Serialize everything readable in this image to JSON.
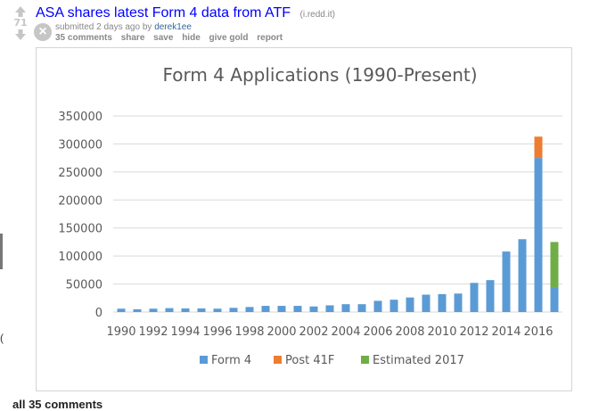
{
  "post": {
    "score": "71",
    "title": "ASA shares latest Form 4 data from ATF",
    "domain": "(i.redd.it)",
    "submitted_prefix": "submitted 2 days ago by",
    "author": "derek1ee",
    "comments_label": "35 comments",
    "share_label": "share",
    "save_label": "save",
    "hide_label": "hide",
    "give_gold_label": "give gold",
    "report_label": "report"
  },
  "footer": {
    "comments_header": "all 35 comments"
  },
  "colors": {
    "form4": "#5B9BD5",
    "post41f": "#ED7D31",
    "estimated": "#70AD47"
  },
  "chart_data": {
    "type": "bar",
    "title": "Form 4 Applications (1990-Present)",
    "x": [
      1990,
      1991,
      1992,
      1993,
      1994,
      1995,
      1996,
      1997,
      1998,
      1999,
      2000,
      2001,
      2002,
      2003,
      2004,
      2005,
      2006,
      2007,
      2008,
      2009,
      2010,
      2011,
      2012,
      2013,
      2014,
      2015,
      2016,
      2017
    ],
    "series": [
      {
        "name": "Form 4",
        "values": [
          6000,
          5000,
          6000,
          7000,
          6500,
          6500,
          6000,
          7500,
          9000,
          11000,
          11000,
          11000,
          10000,
          12000,
          14000,
          14000,
          20000,
          22000,
          26000,
          31000,
          32000,
          33000,
          52000,
          57000,
          108000,
          130000,
          275000,
          43000
        ]
      },
      {
        "name": "Post 41F",
        "values": [
          0,
          0,
          0,
          0,
          0,
          0,
          0,
          0,
          0,
          0,
          0,
          0,
          0,
          0,
          0,
          0,
          0,
          0,
          0,
          0,
          0,
          0,
          0,
          0,
          0,
          0,
          38000,
          0
        ]
      },
      {
        "name": "Estimated 2017",
        "values": [
          0,
          0,
          0,
          0,
          0,
          0,
          0,
          0,
          0,
          0,
          0,
          0,
          0,
          0,
          0,
          0,
          0,
          0,
          0,
          0,
          0,
          0,
          0,
          0,
          0,
          0,
          0,
          82000
        ]
      }
    ],
    "y_ticks": [
      "0",
      "50000",
      "100000",
      "150000",
      "200000",
      "250000",
      "300000",
      "350000"
    ],
    "x_tick_labels": [
      "1990",
      "1992",
      "1994",
      "1996",
      "1998",
      "2000",
      "2002",
      "2004",
      "2006",
      "2008",
      "2010",
      "2012",
      "2014",
      "2016"
    ],
    "ylim": [
      0,
      350000
    ],
    "stacked": true,
    "grid": true,
    "legend": "bottom"
  }
}
